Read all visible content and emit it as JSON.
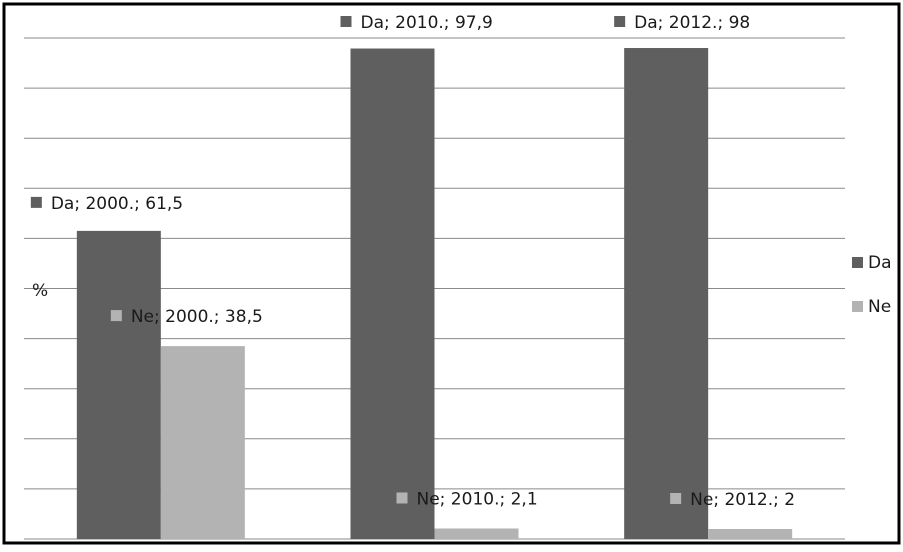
{
  "chart_data": {
    "type": "bar",
    "categories": [
      "2000.",
      "2010.",
      "2012."
    ],
    "series": [
      {
        "name": "Da",
        "values": [
          61.5,
          97.9,
          98
        ],
        "color": "#5f5f5f"
      },
      {
        "name": "Ne",
        "values": [
          38.5,
          2.1,
          2
        ],
        "color": "#b3b3b3"
      }
    ],
    "data_labels": [
      [
        "Da; 2000.; 61,5",
        "Da; 2010.; 97,9",
        "Da; 2012.; 98"
      ],
      [
        "Ne; 2000.; 38,5",
        "Ne; 2010.; 2,1",
        "Ne; 2012.; 2"
      ]
    ],
    "title": "",
    "xlabel": "",
    "ylabel": "%",
    "ylim": [
      0,
      100
    ],
    "gridlines": true,
    "legend": "right"
  }
}
